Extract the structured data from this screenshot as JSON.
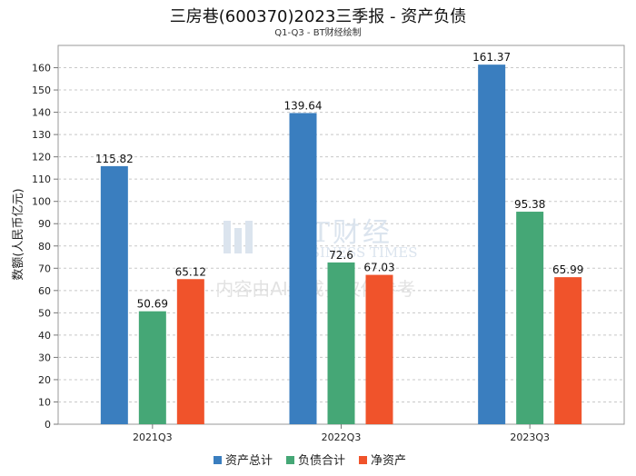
{
  "chart_data": {
    "type": "bar",
    "title": "三房巷(600370)2023三季报 - 资产负债",
    "subtitle": "Q1-Q3 - BT财经绘制",
    "xlabel": "",
    "ylabel": "数额(人民币亿元)",
    "ylim": [
      0,
      170
    ],
    "yticks": [
      0,
      10,
      20,
      30,
      40,
      50,
      60,
      70,
      80,
      90,
      100,
      110,
      120,
      130,
      140,
      150,
      160
    ],
    "categories": [
      "2021Q3",
      "2022Q3",
      "2023Q3"
    ],
    "series": [
      {
        "name": "资产总计",
        "color": "#3a7ebf",
        "values": [
          115.82,
          139.64,
          161.37
        ]
      },
      {
        "name": "负债合计",
        "color": "#45a776",
        "values": [
          50.69,
          72.6,
          95.38
        ]
      },
      {
        "name": "净资产",
        "color": "#f0532b",
        "values": [
          65.12,
          67.03,
          65.99
        ]
      }
    ],
    "grid": true,
    "legend_position": "bottom-center"
  },
  "watermark": {
    "logo": "BT财经",
    "logo_sub": "BUSINESS TIMES",
    "notice": "内容由AI生成，仅供参考"
  }
}
